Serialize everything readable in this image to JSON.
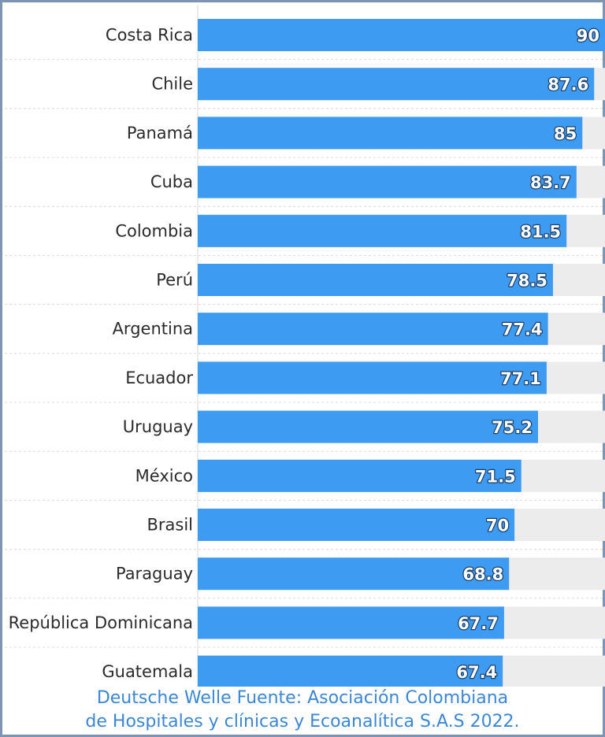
{
  "chart_data": {
    "type": "bar",
    "orientation": "horizontal",
    "categories": [
      "Costa Rica",
      "Chile",
      "Panamá",
      "Cuba",
      "Colombia",
      "Perú",
      "Argentina",
      "Ecuador",
      "Uruguay",
      "México",
      "Brasil",
      "Paraguay",
      "República Dominicana",
      "Guatemala"
    ],
    "values": [
      90,
      87.6,
      85,
      83.7,
      81.5,
      78.5,
      77.4,
      77.1,
      75.2,
      71.5,
      70,
      68.8,
      67.7,
      67.4
    ],
    "value_labels": [
      "90",
      "87.6",
      "85",
      "83.7",
      "81.5",
      "78.5",
      "77.4",
      "77.1",
      "75.2",
      "71.5",
      "70",
      "68.8",
      "67.7",
      "67.4"
    ],
    "xlim": [
      0,
      90
    ],
    "bar_color": "#3d9bf2",
    "background_track_color": "#ececec",
    "grid": true
  },
  "caption": {
    "line1": "Deutsche Welle Fuente: Asociación Colombiana",
    "line2": "de Hospitales y clínicas y Ecoanalítica S.A.S 2022."
  },
  "colors": {
    "caption": "#3b87d6",
    "frame": "#7d95b5"
  }
}
